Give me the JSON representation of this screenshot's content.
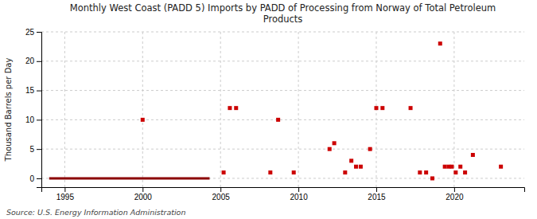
{
  "chart_data": {
    "type": "scatter",
    "title": "Monthly West Coast (PADD 5) Imports by PADD of Processing from Norway of Total Petroleum\nProducts",
    "ylabel": "Thousand Barrels per Day",
    "source": "Source: U.S. Energy Information Administration",
    "xlim": [
      1993.5,
      2024.5
    ],
    "ylim": [
      -1.5,
      25
    ],
    "xticks": [
      1995,
      2000,
      2005,
      2010,
      2015,
      2020
    ],
    "yticks": [
      0,
      5,
      10,
      15,
      20,
      25
    ],
    "grid": true,
    "series": [
      {
        "type": "line",
        "color": "#8b0000",
        "x": [
          1994.0,
          2004.3
        ],
        "values": [
          0,
          0
        ]
      },
      {
        "type": "scatter",
        "color": "#cc0000",
        "marker": "square",
        "x": [
          2000.0,
          2005.2,
          2005.6,
          2006.0,
          2008.2,
          2008.7,
          2009.7,
          2012.0,
          2012.3,
          2013.0,
          2013.4,
          2013.7,
          2014.0,
          2014.6,
          2015.0,
          2015.4,
          2017.2,
          2017.8,
          2018.2,
          2018.6,
          2019.1,
          2019.4,
          2019.65,
          2019.85,
          2020.1,
          2020.4,
          2020.7,
          2021.2,
          2023.0
        ],
        "values": [
          10.0,
          1.0,
          12.0,
          12.0,
          1.0,
          10.0,
          1.0,
          5.0,
          6.0,
          1.0,
          3.0,
          2.0,
          2.0,
          5.0,
          12.0,
          12.0,
          12.0,
          1.0,
          1.0,
          0.0,
          23.0,
          2.0,
          2.0,
          2.0,
          1.0,
          2.0,
          1.0,
          4.0,
          2.0
        ]
      }
    ]
  }
}
